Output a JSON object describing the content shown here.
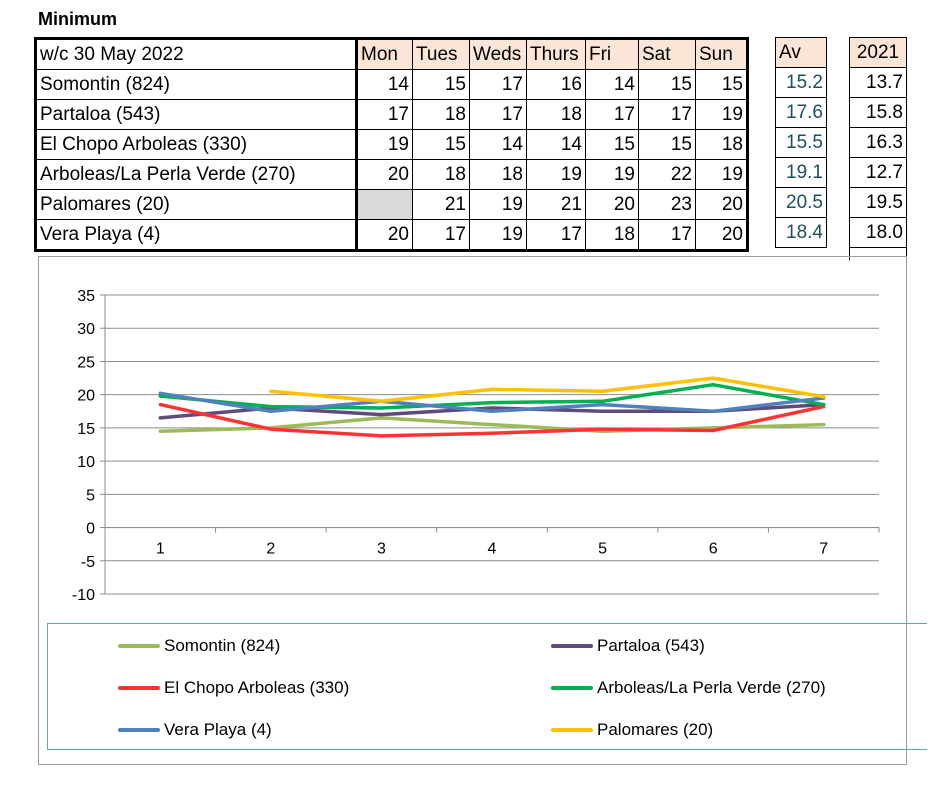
{
  "heading": "Minimum",
  "table": {
    "week_label": "w/c 30 May 2022",
    "days": [
      "Mon",
      "Tues",
      "Weds",
      "Thurs",
      "Fri",
      "Sat",
      "Sun"
    ],
    "av_header": "Av",
    "year_header": "2021",
    "rows": [
      {
        "site": "Somontin (824)",
        "values": [
          "14",
          "15",
          "17",
          "16",
          "14",
          "15",
          "15"
        ],
        "av": "15.2",
        "y2021": "13.7"
      },
      {
        "site": "Partaloa (543)",
        "values": [
          "17",
          "18",
          "17",
          "18",
          "17",
          "17",
          "19"
        ],
        "av": "17.6",
        "y2021": "15.8"
      },
      {
        "site": "El Chopo Arboleas (330)",
        "values": [
          "19",
          "15",
          "14",
          "14",
          "15",
          "15",
          "18"
        ],
        "av": "15.5",
        "y2021": "16.3"
      },
      {
        "site": "Arboleas/La Perla Verde (270)",
        "values": [
          "20",
          "18",
          "18",
          "19",
          "19",
          "22",
          "19"
        ],
        "av": "19.1",
        "y2021": "12.7"
      },
      {
        "site": "Palomares (20)",
        "values": [
          "",
          "21",
          "19",
          "21",
          "20",
          "23",
          "20"
        ],
        "av": "20.5",
        "y2021": "19.5"
      },
      {
        "site": "Vera Playa (4)",
        "values": [
          "20",
          "17",
          "19",
          "17",
          "18",
          "17",
          "20"
        ],
        "av": "18.4",
        "y2021": "18.0"
      }
    ]
  },
  "chart_data": {
    "type": "line",
    "x": [
      1,
      2,
      3,
      4,
      5,
      6,
      7
    ],
    "ylim": [
      -10,
      35
    ],
    "yticks": [
      -10,
      -5,
      0,
      5,
      10,
      15,
      20,
      25,
      30,
      35
    ],
    "grid": true,
    "legend_position": "bottom",
    "series": [
      {
        "name": "Somontin (824)",
        "color": "#9bbb59",
        "values": [
          14.5,
          15,
          16.5,
          15.5,
          14.5,
          15,
          15.5
        ]
      },
      {
        "name": "Partaloa (543)",
        "color": "#604a7b",
        "values": [
          16.5,
          18,
          17,
          18,
          17.5,
          17.5,
          18.5
        ]
      },
      {
        "name": "El Chopo Arboleas (330)",
        "color": "#ff3333",
        "values": [
          18.5,
          14.8,
          13.8,
          14.2,
          14.8,
          14.6,
          18.2
        ]
      },
      {
        "name": "Arboleas/La Perla Verde (270)",
        "color": "#00b050",
        "values": [
          19.8,
          18.2,
          18,
          18.8,
          19,
          21.5,
          18.5
        ]
      },
      {
        "name": "Vera Playa (4)",
        "color": "#4f81bd",
        "values": [
          20.2,
          17.5,
          19,
          17.5,
          18.5,
          17.5,
          19.5
        ]
      },
      {
        "name": "Palomares (20)",
        "color": "#ffc000",
        "values": [
          null,
          20.5,
          19,
          20.8,
          20.5,
          22.5,
          19.7
        ]
      }
    ],
    "legend": [
      "Somontin (824)",
      "Partaloa (543)",
      "El Chopo Arboleas (330)",
      "Arboleas/La Perla Verde (270)",
      "Vera Playa (4)",
      "Palomares (20)"
    ]
  }
}
